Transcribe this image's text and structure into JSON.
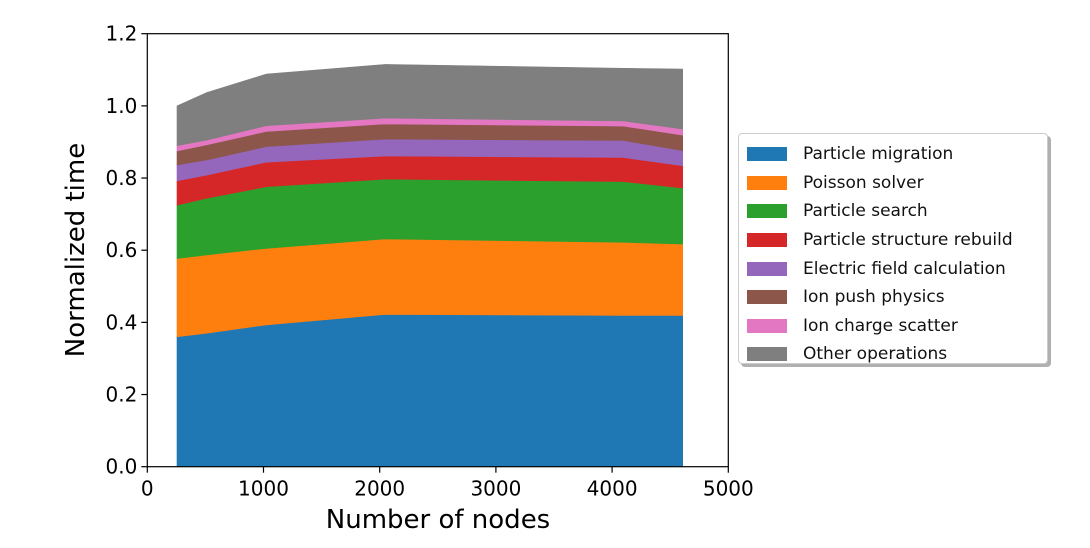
{
  "chart_data": {
    "type": "area",
    "stacked": true,
    "title": "",
    "xlabel": "Number of nodes",
    "ylabel": "Normalized time",
    "xlim": [
      0,
      5000
    ],
    "ylim": [
      0,
      1.2
    ],
    "xticks": [
      0,
      1000,
      2000,
      3000,
      4000,
      5000
    ],
    "xtick_labels": [
      "0",
      "1000",
      "2000",
      "3000",
      "4000",
      "5000"
    ],
    "yticks": [
      0.0,
      0.2,
      0.4,
      0.6,
      0.8,
      1.0,
      1.2
    ],
    "ytick_labels": [
      "0.0",
      "0.2",
      "0.4",
      "0.6",
      "0.8",
      "1.0",
      "1.2"
    ],
    "grid": false,
    "legend_position": "outside right, center",
    "x": [
      256,
      512,
      1024,
      2048,
      4096,
      4608
    ],
    "series": [
      {
        "name": "Particle migration",
        "color": "#1f77b4",
        "values": [
          0.36,
          0.37,
          0.393,
          0.422,
          0.419,
          0.419
        ]
      },
      {
        "name": "Poisson solver",
        "color": "#ff7f0e",
        "values": [
          0.217,
          0.217,
          0.212,
          0.209,
          0.203,
          0.198
        ]
      },
      {
        "name": "Particle search",
        "color": "#2ca02c",
        "values": [
          0.148,
          0.157,
          0.171,
          0.166,
          0.168,
          0.155
        ]
      },
      {
        "name": "Particle structure rebuild",
        "color": "#d62728",
        "values": [
          0.067,
          0.064,
          0.068,
          0.064,
          0.067,
          0.062
        ]
      },
      {
        "name": "Electric field calculation",
        "color": "#9467bd",
        "values": [
          0.044,
          0.042,
          0.043,
          0.047,
          0.047,
          0.042
        ]
      },
      {
        "name": "Ion push physics",
        "color": "#8c564b",
        "values": [
          0.039,
          0.042,
          0.042,
          0.042,
          0.04,
          0.043
        ]
      },
      {
        "name": "Ion charge scatter",
        "color": "#e377c2",
        "values": [
          0.015,
          0.013,
          0.016,
          0.016,
          0.014,
          0.017
        ]
      },
      {
        "name": "Other operations",
        "color": "#7f7f7f",
        "values": [
          0.11,
          0.132,
          0.143,
          0.149,
          0.146,
          0.166
        ]
      }
    ]
  },
  "legend": {
    "items": [
      {
        "label": "Particle migration",
        "color": "#1f77b4"
      },
      {
        "label": "Poisson solver",
        "color": "#ff7f0e"
      },
      {
        "label": "Particle search",
        "color": "#2ca02c"
      },
      {
        "label": "Particle structure rebuild",
        "color": "#d62728"
      },
      {
        "label": "Electric field calculation",
        "color": "#9467bd"
      },
      {
        "label": "Ion push physics",
        "color": "#8c564b"
      },
      {
        "label": "Ion charge scatter",
        "color": "#e377c2"
      },
      {
        "label": "Other operations",
        "color": "#7f7f7f"
      }
    ]
  }
}
